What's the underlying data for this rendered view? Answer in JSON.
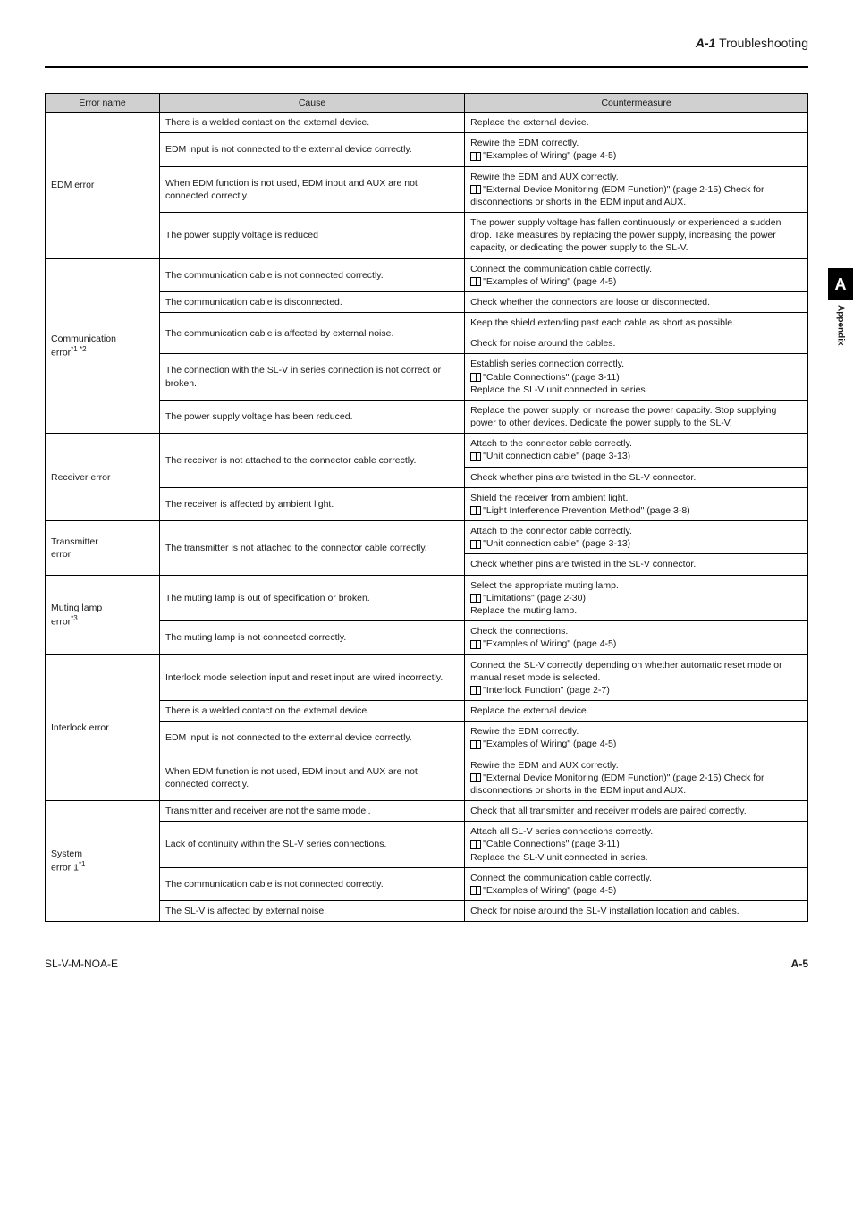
{
  "header": {
    "section": "A-1",
    "title": "Troubleshooting"
  },
  "sidetab": {
    "letter": "A",
    "label": "Appendix"
  },
  "footer": {
    "left": "SL-V-M-NOA-E",
    "right": "A-5"
  },
  "columns": [
    "Error name",
    "Cause",
    "Countermeasure"
  ],
  "groups": [
    {
      "name": "EDM error",
      "rows": [
        {
          "cause": "There is a welded contact on the external device.",
          "cm": "Replace the external device."
        },
        {
          "cause": "EDM input is not connected to the external device correctly.",
          "cm": "Rewire the EDM correctly.\n[book] \"Examples of Wiring\" (page 4-5)"
        },
        {
          "cause": "When EDM function is not used, EDM input and AUX are not connected correctly.",
          "cm": "Rewire the EDM and AUX correctly.\n[book] \"External Device Monitoring (EDM Function)\" (page 2-15) Check for disconnections or shorts in the EDM input and AUX."
        },
        {
          "cause": "The power supply voltage is reduced",
          "cm": "The power supply voltage has fallen continuously or experienced a sudden drop. Take measures by replacing the power supply, increasing the power capacity, or dedicating the power supply to the SL-V."
        }
      ]
    },
    {
      "name": "Communication error*1 *2",
      "name_sup": "*1 *2",
      "name_base": "Communication error",
      "rows": [
        {
          "cause": "The communication cable is not connected correctly.",
          "cm": "Connect the communication cable correctly.\n[book] \"Examples of Wiring\" (page 4-5)"
        },
        {
          "cause": "The communication cable is disconnected.",
          "cm": "Check whether the connectors are loose or disconnected."
        },
        {
          "cause": "The communication cable is affected by external noise.",
          "cause_span": 2,
          "cm": "Keep the shield extending past each cable as short as possible."
        },
        {
          "cm": "Check for noise around the cables."
        },
        {
          "cause": "The connection with the SL-V in series connection is not correct or broken.",
          "cm": "Establish series connection correctly.\n[book] \"Cable Connections\" (page 3-11)\nReplace the SL-V unit connected in series."
        },
        {
          "cause": "The power supply voltage has been reduced.",
          "cm": "Replace the power supply, or increase the power capacity. Stop supplying power to other devices. Dedicate the power supply to the SL-V."
        }
      ]
    },
    {
      "name": "Receiver error",
      "rows": [
        {
          "cause": "The receiver is not attached to the connector cable correctly.",
          "cause_span": 2,
          "cm": "Attach to the connector cable correctly.\n[book] \"Unit connection cable\" (page 3-13)"
        },
        {
          "cm": "Check whether pins are twisted in the SL-V connector."
        },
        {
          "cause": "The receiver is affected by ambient light.",
          "cm": "Shield the receiver from ambient light.\n[book] \"Light Interference Prevention Method\" (page 3-8)"
        }
      ]
    },
    {
      "name": "Transmitter error",
      "rows": [
        {
          "cause": "The transmitter is not attached to the connector cable correctly.",
          "cause_span": 2,
          "cm": "Attach to the connector cable correctly.\n[book] \"Unit connection cable\" (page 3-13)"
        },
        {
          "cm": "Check whether pins are twisted in the SL-V connector."
        }
      ]
    },
    {
      "name": "Muting lamp error*3",
      "name_base": "Muting lamp error",
      "name_sup": "*3",
      "rows": [
        {
          "cause": "The muting lamp is out of specification or broken.",
          "cm": "Select the appropriate muting lamp.\n[book] \"Limitations\" (page 2-30)\nReplace the muting lamp."
        },
        {
          "cause": "The muting lamp is not connected correctly.",
          "cm": "Check the connections.\n[book] \"Examples of Wiring\" (page 4-5)"
        }
      ]
    },
    {
      "name": "Interlock error",
      "rows": [
        {
          "cause": "Interlock mode selection input and reset input are wired incorrectly.",
          "cm": "Connect the SL-V correctly depending on whether automatic reset mode or manual reset mode is selected.\n[book] \"Interlock Function\" (page 2-7)"
        },
        {
          "cause": "There is a welded contact on the external device.",
          "cm": "Replace the external device."
        },
        {
          "cause": "EDM input is not connected to the external device correctly.",
          "cm": "Rewire the EDM correctly.\n[book] \"Examples of Wiring\" (page 4-5)"
        },
        {
          "cause": "When EDM function is not used, EDM input and AUX are not connected correctly.",
          "cm": "Rewire the EDM and AUX correctly.\n[book] \"External Device Monitoring (EDM Function)\" (page 2-15) Check for disconnections or shorts in the EDM input and AUX."
        }
      ]
    },
    {
      "name": "System error 1*1",
      "name_base": "System error 1",
      "name_sup": "*1",
      "rows": [
        {
          "cause": "Transmitter and receiver are not the same model.",
          "cm": "Check that all transmitter and receiver models are paired correctly."
        },
        {
          "cause": "Lack of continuity within the SL-V series connections.",
          "cm": "Attach all SL-V series connections correctly.\n[book] \"Cable Connections\" (page 3-11)\nReplace the SL-V unit connected in series."
        },
        {
          "cause": "The communication cable is not connected correctly.",
          "cm": "Connect the communication cable correctly.\n[book] \"Examples of Wiring\" (page 4-5)"
        },
        {
          "cause": "The SL-V is affected by external noise.",
          "cm": "Check for noise around the SL-V installation location and cables."
        }
      ]
    }
  ]
}
